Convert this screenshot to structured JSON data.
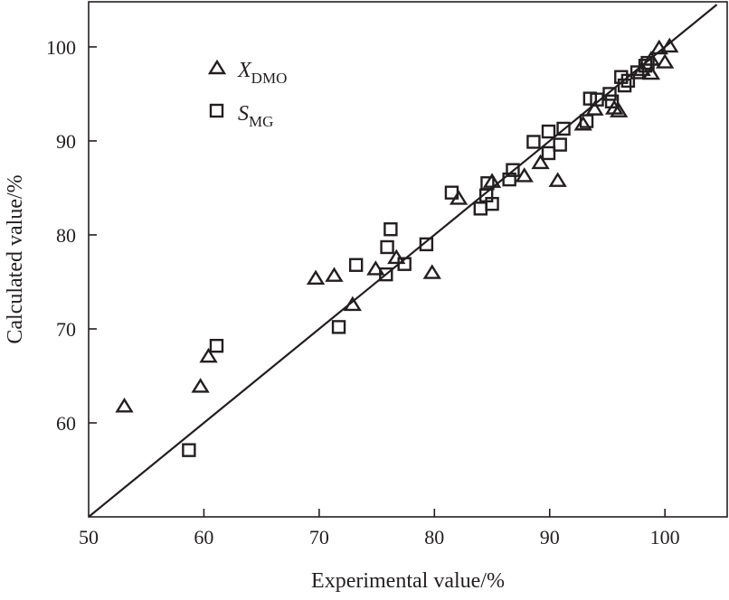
{
  "chart_data": {
    "type": "scatter",
    "title": "",
    "xlabel": "Experimental value/%",
    "ylabel": "Calculated value/%",
    "xlim": [
      50,
      105.4
    ],
    "ylim": [
      50,
      104.8
    ],
    "xticks": [
      50,
      60,
      70,
      80,
      90,
      100
    ],
    "yticks": [
      60,
      70,
      80,
      90,
      100
    ],
    "xtick_labels": [
      "50",
      "60",
      "70",
      "80",
      "90",
      "100"
    ],
    "ytick_labels": [
      "60",
      "70",
      "80",
      "90",
      "100"
    ],
    "grid": false,
    "legend_position": "top-left",
    "reference_line": {
      "type": "y=x",
      "from": [
        50,
        50
      ],
      "to": [
        104.5,
        104.5
      ]
    },
    "series": [
      {
        "name": "X_DMO",
        "legend_main": "X",
        "legend_sub": "DMO",
        "marker": "triangle",
        "points": [
          [
            53.1,
            61.7
          ],
          [
            59.7,
            63.8
          ],
          [
            60.4,
            67.0
          ],
          [
            69.7,
            75.3
          ],
          [
            71.3,
            75.6
          ],
          [
            72.9,
            72.5
          ],
          [
            74.9,
            76.3
          ],
          [
            76.7,
            77.5
          ],
          [
            79.8,
            75.9
          ],
          [
            82.1,
            83.8
          ],
          [
            85.0,
            85.6
          ],
          [
            87.8,
            86.2
          ],
          [
            89.2,
            87.6
          ],
          [
            90.7,
            85.7
          ],
          [
            92.9,
            91.7
          ],
          [
            93.9,
            93.3
          ],
          [
            95.6,
            93.4
          ],
          [
            96.0,
            93.1
          ],
          [
            98.0,
            97.5
          ],
          [
            98.8,
            97.1
          ],
          [
            98.8,
            98.6
          ],
          [
            99.5,
            99.8
          ],
          [
            100.0,
            98.3
          ],
          [
            100.4,
            100.0
          ]
        ]
      },
      {
        "name": "S_MG",
        "legend_main": "S",
        "legend_sub": "MG",
        "marker": "square",
        "points": [
          [
            58.7,
            57.1
          ],
          [
            61.1,
            68.2
          ],
          [
            71.7,
            70.2
          ],
          [
            73.2,
            76.8
          ],
          [
            75.8,
            75.8
          ],
          [
            75.9,
            78.7
          ],
          [
            76.2,
            80.6
          ],
          [
            77.4,
            76.9
          ],
          [
            79.3,
            79.0
          ],
          [
            81.5,
            84.5
          ],
          [
            84.0,
            82.8
          ],
          [
            84.6,
            85.5
          ],
          [
            84.5,
            84.2
          ],
          [
            85.0,
            83.3
          ],
          [
            86.5,
            85.9
          ],
          [
            86.8,
            86.9
          ],
          [
            88.6,
            89.9
          ],
          [
            89.9,
            91.0
          ],
          [
            89.9,
            88.7
          ],
          [
            90.9,
            89.6
          ],
          [
            91.2,
            91.3
          ],
          [
            93.2,
            92.1
          ],
          [
            93.5,
            94.5
          ],
          [
            94.1,
            94.4
          ],
          [
            95.4,
            94.2
          ],
          [
            95.2,
            95.0
          ],
          [
            96.2,
            96.8
          ],
          [
            96.5,
            95.9
          ],
          [
            96.8,
            96.4
          ],
          [
            97.6,
            97.3
          ],
          [
            98.3,
            98.0
          ],
          [
            98.5,
            98.3
          ]
        ]
      }
    ]
  }
}
